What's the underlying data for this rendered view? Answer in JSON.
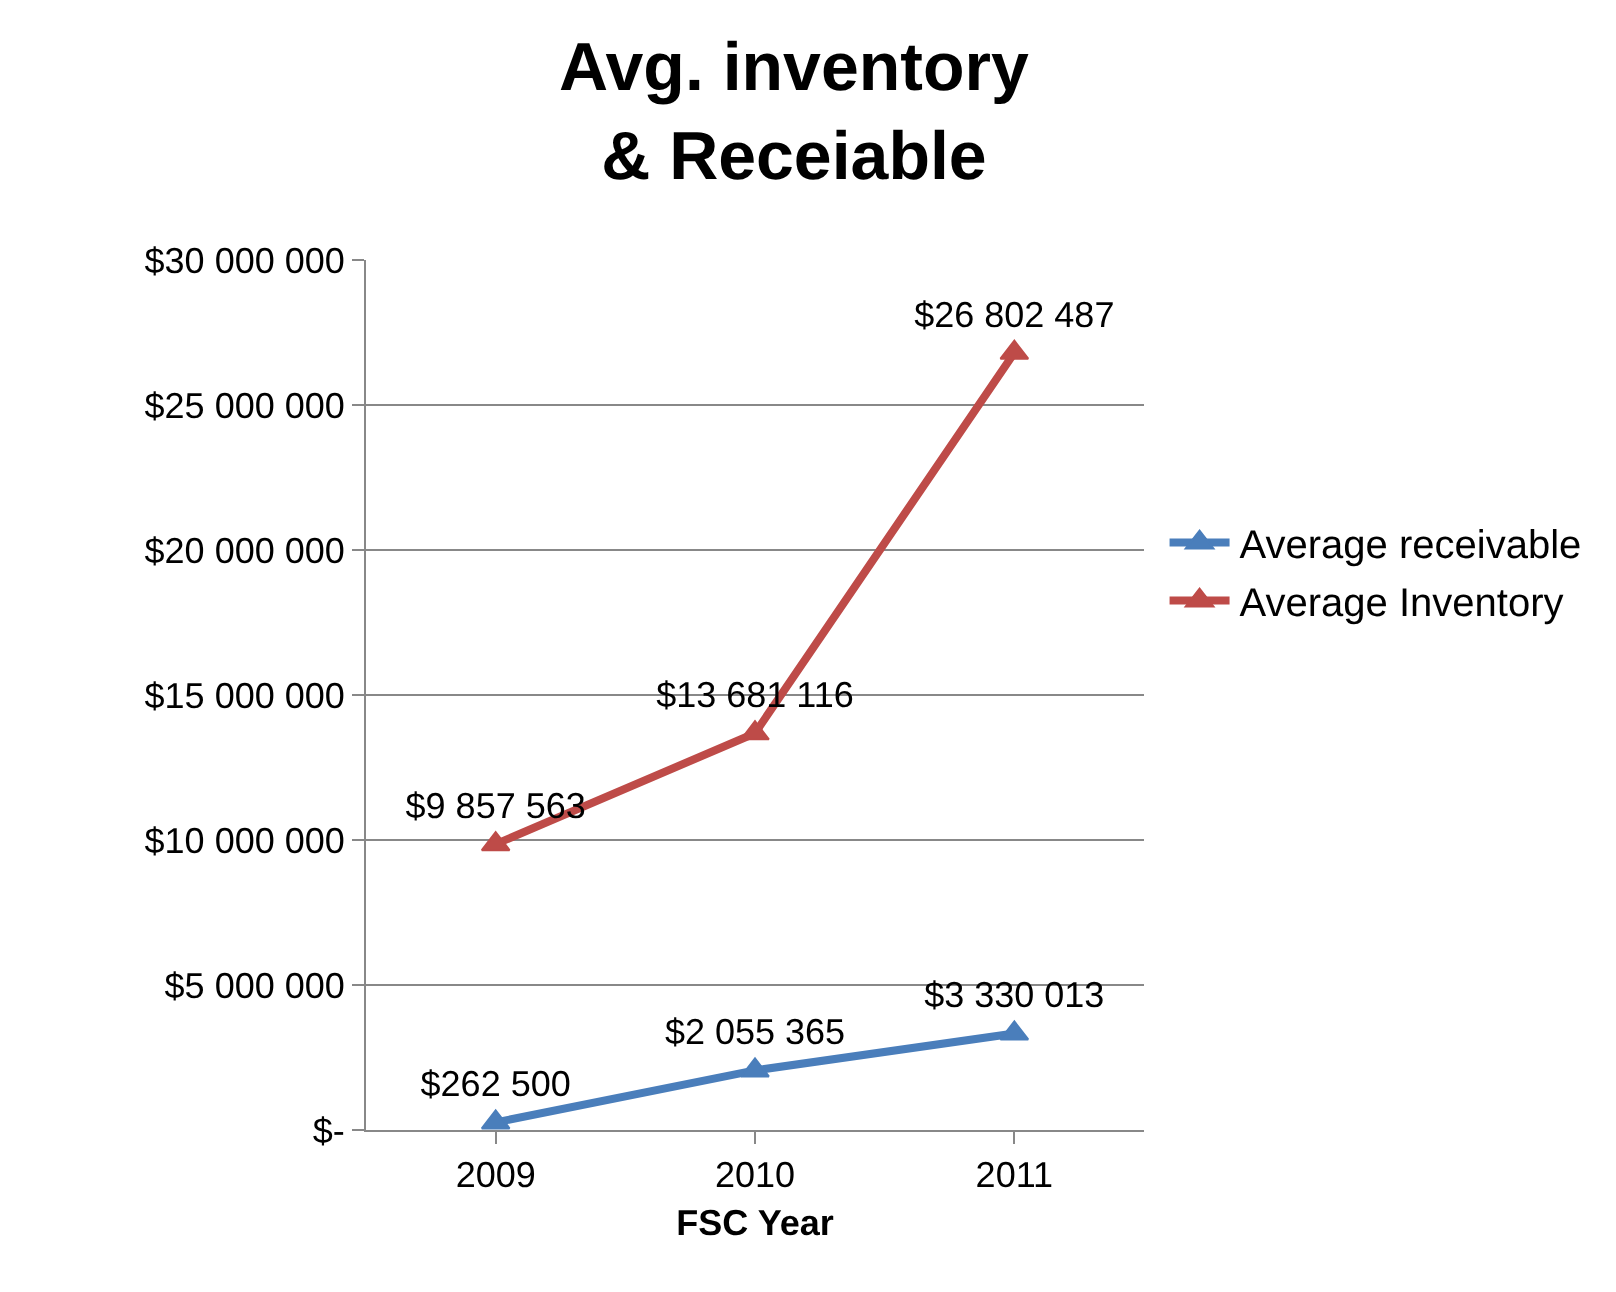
{
  "chart_data": {
    "type": "line",
    "title": "Avg. inventory\n& Receiable",
    "xlabel": "FSC Year",
    "categories": [
      "2009",
      "2010",
      "2011"
    ],
    "series": [
      {
        "name": "Average receivable",
        "color": "#4a7ebb",
        "values": [
          262500,
          2055365,
          3330013
        ],
        "value_labels": [
          "$262 500",
          "$2 055 365",
          "$3 330 013"
        ]
      },
      {
        "name": "Average Inventory",
        "color": "#be4b48",
        "values": [
          9857563,
          13681116,
          26802487
        ],
        "value_labels": [
          "$9 857 563",
          "$13 681 116",
          "$26 802 487"
        ]
      }
    ],
    "ylim": [
      0,
      30000000
    ],
    "yticks": [
      {
        "value": 0,
        "label": "$-"
      },
      {
        "value": 5000000,
        "label": "$5 000 000"
      },
      {
        "value": 10000000,
        "label": "$10 000 000"
      },
      {
        "value": 15000000,
        "label": "$15 000 000"
      },
      {
        "value": 20000000,
        "label": "$20 000 000"
      },
      {
        "value": 25000000,
        "label": "$25 000 000"
      },
      {
        "value": 30000000,
        "label": "$30 000 000"
      }
    ],
    "grid": "y",
    "legend": "right",
    "marker": "triangle",
    "line_style": "solid"
  }
}
